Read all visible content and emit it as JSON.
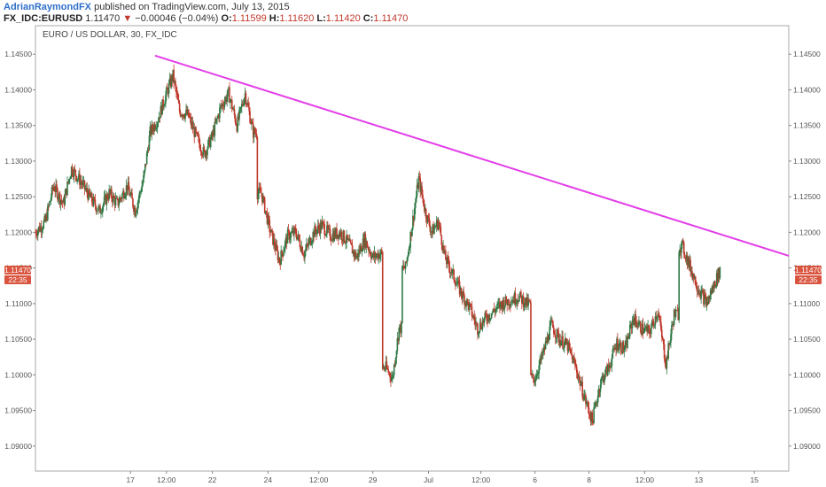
{
  "header": {
    "author": "AdrianRaymondFX",
    "published": "published on TradingView.com, July 13, 2015",
    "symbol": "FX_IDC:EURUSD",
    "last": "1.11470",
    "change": "−0.00046 (−0.04%)",
    "o_label": "O:",
    "o_value": "1.11599",
    "h_label": "H:",
    "h_value": "1.11620",
    "l_label": "L:",
    "l_value": "1.11420",
    "c_label": "C:",
    "c_value": "1.11470"
  },
  "colors": {
    "up": "#2f7a46",
    "down": "#c0392b",
    "trendline": "#e23ee8",
    "badge": "#d9553f",
    "axis_text": "#555555",
    "frame": "#aaaaaa"
  },
  "chart_data": {
    "type": "candlestick",
    "title": "EURO / US DOLLAR, 30, FX_IDC",
    "interval": "30",
    "ylim": [
      1.0865,
      1.149
    ],
    "y_ticks": [
      "1.09000",
      "1.09500",
      "1.10000",
      "1.10500",
      "1.11000",
      "1.11500",
      "1.12000",
      "1.12500",
      "1.13000",
      "1.13500",
      "1.14000",
      "1.14500"
    ],
    "x_ticks": [
      {
        "label": "17",
        "t": 5.8
      },
      {
        "label": "12:00",
        "t": 8.0
      },
      {
        "label": "22",
        "t": 10.8
      },
      {
        "label": "24",
        "t": 14.2
      },
      {
        "label": "12:00",
        "t": 17.3
      },
      {
        "label": "29",
        "t": 20.6
      },
      {
        "label": "Jul",
        "t": 24.0
      },
      {
        "label": "12:00",
        "t": 27.2
      },
      {
        "label": "6",
        "t": 30.5
      },
      {
        "label": "8",
        "t": 33.8
      },
      {
        "label": "12:00",
        "t": 37.2
      },
      {
        "label": "13",
        "t": 40.5
      },
      {
        "label": "15",
        "t": 43.9
      }
    ],
    "t_range": [
      0,
      46
    ],
    "price_path": [
      [
        0.0,
        1.12
      ],
      [
        0.6,
        1.1215
      ],
      [
        1.1,
        1.1265
      ],
      [
        1.7,
        1.124
      ],
      [
        2.2,
        1.129
      ],
      [
        2.8,
        1.127
      ],
      [
        3.3,
        1.125
      ],
      [
        3.9,
        1.123
      ],
      [
        4.5,
        1.1255
      ],
      [
        5.0,
        1.124
      ],
      [
        5.6,
        1.1265
      ],
      [
        6.1,
        1.123
      ],
      [
        6.6,
        1.1275
      ],
      [
        7.0,
        1.134
      ],
      [
        7.5,
        1.136
      ],
      [
        8.0,
        1.1395
      ],
      [
        8.4,
        1.142
      ],
      [
        8.8,
        1.137
      ],
      [
        9.3,
        1.1365
      ],
      [
        9.8,
        1.1335
      ],
      [
        10.3,
        1.131
      ],
      [
        10.8,
        1.1335
      ],
      [
        11.3,
        1.1375
      ],
      [
        11.8,
        1.1395
      ],
      [
        12.3,
        1.135
      ],
      [
        12.8,
        1.1395
      ],
      [
        13.3,
        1.134
      ],
      [
        13.8,
        1.1255
      ],
      [
        14.3,
        1.1205
      ],
      [
        14.9,
        1.116
      ],
      [
        15.4,
        1.1195
      ],
      [
        15.9,
        1.12
      ],
      [
        16.4,
        1.117
      ],
      [
        17.0,
        1.12
      ],
      [
        17.5,
        1.121
      ],
      [
        18.0,
        1.1195
      ],
      [
        18.6,
        1.12
      ],
      [
        19.1,
        1.1185
      ],
      [
        19.6,
        1.1165
      ],
      [
        20.1,
        1.119
      ],
      [
        20.6,
        1.1165
      ],
      [
        21.0,
        1.117
      ],
      [
        21.4,
        1.101
      ],
      [
        21.8,
        1.0995
      ],
      [
        22.2,
        1.1065
      ],
      [
        22.6,
        1.115
      ],
      [
        23.0,
        1.121
      ],
      [
        23.4,
        1.1275
      ],
      [
        23.8,
        1.123
      ],
      [
        24.2,
        1.12
      ],
      [
        24.6,
        1.1215
      ],
      [
        25.0,
        1.1165
      ],
      [
        25.5,
        1.114
      ],
      [
        26.0,
        1.1115
      ],
      [
        26.5,
        1.1095
      ],
      [
        27.0,
        1.1065
      ],
      [
        27.5,
        1.108
      ],
      [
        28.0,
        1.109
      ],
      [
        28.5,
        1.11
      ],
      [
        29.0,
        1.1105
      ],
      [
        29.5,
        1.111
      ],
      [
        30.0,
        1.11
      ],
      [
        30.5,
        1.0995
      ],
      [
        31.0,
        1.103
      ],
      [
        31.5,
        1.107
      ],
      [
        32.0,
        1.105
      ],
      [
        32.5,
        1.104
      ],
      [
        33.0,
        1.101
      ],
      [
        33.5,
        1.097
      ],
      [
        34.0,
        1.0935
      ],
      [
        34.5,
        1.099
      ],
      [
        35.0,
        1.101
      ],
      [
        35.5,
        1.1045
      ],
      [
        36.0,
        1.1035
      ],
      [
        36.5,
        1.108
      ],
      [
        37.0,
        1.1065
      ],
      [
        37.5,
        1.106
      ],
      [
        38.0,
        1.109
      ],
      [
        38.5,
        1.1015
      ],
      [
        39.0,
        1.1085
      ],
      [
        39.5,
        1.118
      ],
      [
        40.0,
        1.115
      ],
      [
        40.5,
        1.112
      ],
      [
        41.0,
        1.11
      ],
      [
        41.5,
        1.113
      ],
      [
        41.8,
        1.1147
      ]
    ],
    "trendline": {
      "start": [
        7.3,
        1.1448
      ],
      "end": [
        46.0,
        1.1167
      ]
    },
    "last_price_label": "1.11470",
    "countdown_label": "22:35"
  }
}
